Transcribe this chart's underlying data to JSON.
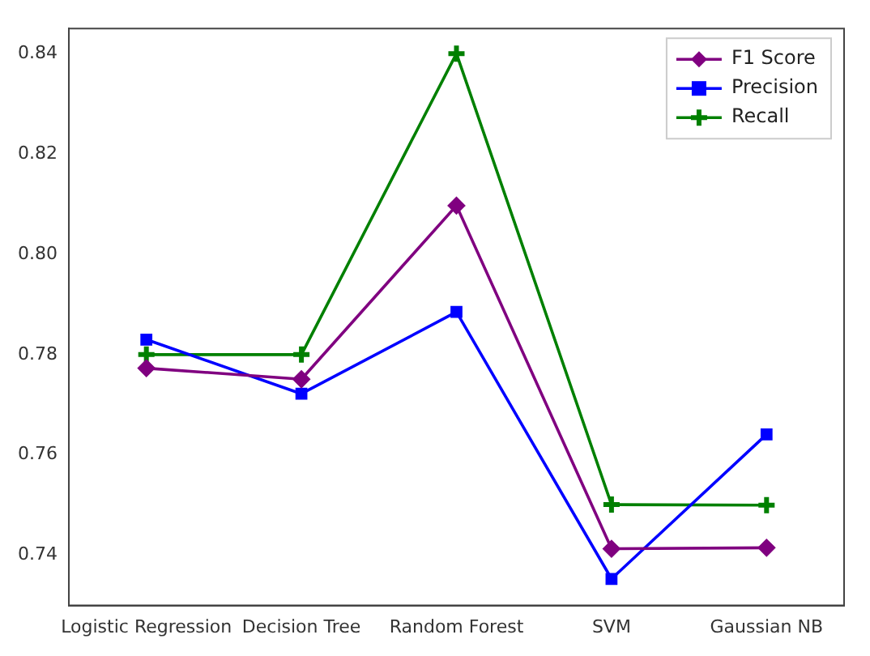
{
  "chart_data": {
    "type": "line",
    "categories": [
      "Logistic Regression",
      "Decision Tree",
      "Random Forest",
      "SVM",
      "Gaussian NB"
    ],
    "series": [
      {
        "name": "F1 Score",
        "color": "#800080",
        "marker": "diamond",
        "values": [
          0.7773,
          0.7751,
          0.8097,
          0.7413,
          0.7415
        ]
      },
      {
        "name": "Precision",
        "color": "#0000ff",
        "marker": "square",
        "values": [
          0.783,
          0.7722,
          0.7885,
          0.7353,
          0.7641
        ]
      },
      {
        "name": "Recall",
        "color": "#008000",
        "marker": "cross",
        "values": [
          0.78,
          0.78,
          0.84,
          0.7501,
          0.75
        ]
      }
    ],
    "ylim": [
      0.73,
      0.845
    ],
    "yticks": [
      {
        "value": 0.74,
        "label": "0.74"
      },
      {
        "value": 0.76,
        "label": "0.76"
      },
      {
        "value": 0.78,
        "label": "0.78"
      },
      {
        "value": 0.8,
        "label": "0.80"
      },
      {
        "value": 0.82,
        "label": "0.82"
      },
      {
        "value": 0.84,
        "label": "0.84"
      }
    ],
    "grid": false,
    "legend": "top right"
  }
}
